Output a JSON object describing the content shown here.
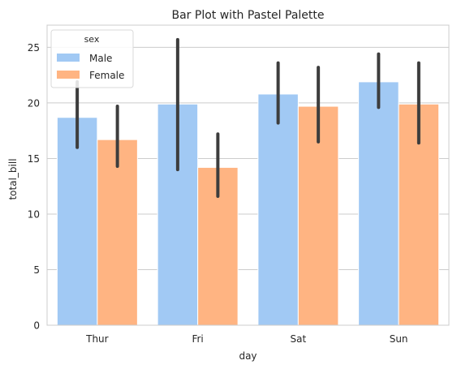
{
  "chart_data": {
    "type": "bar",
    "title": "Bar Plot with Pastel Palette",
    "xlabel": "day",
    "ylabel": "total_bill",
    "categories": [
      "Thur",
      "Fri",
      "Sat",
      "Sun"
    ],
    "ylim": [
      0,
      27
    ],
    "yticks": [
      0,
      5,
      10,
      15,
      20,
      25
    ],
    "grid": "horizontal",
    "legend": {
      "title": "sex",
      "placement": "top-left"
    },
    "series": [
      {
        "name": "Male",
        "color": "#a1c9f4",
        "values": [
          18.7,
          19.9,
          20.8,
          21.9
        ],
        "ci_low": [
          16.0,
          14.0,
          18.2,
          19.6
        ],
        "ci_high": [
          21.9,
          25.7,
          23.6,
          24.4
        ]
      },
      {
        "name": "Female",
        "color": "#ffb482",
        "values": [
          16.7,
          14.2,
          19.7,
          19.9
        ],
        "ci_low": [
          14.3,
          11.6,
          16.5,
          16.4
        ],
        "ci_high": [
          19.7,
          17.2,
          23.2,
          23.6
        ]
      }
    ],
    "errorbar_color": "#3d3d3d"
  }
}
